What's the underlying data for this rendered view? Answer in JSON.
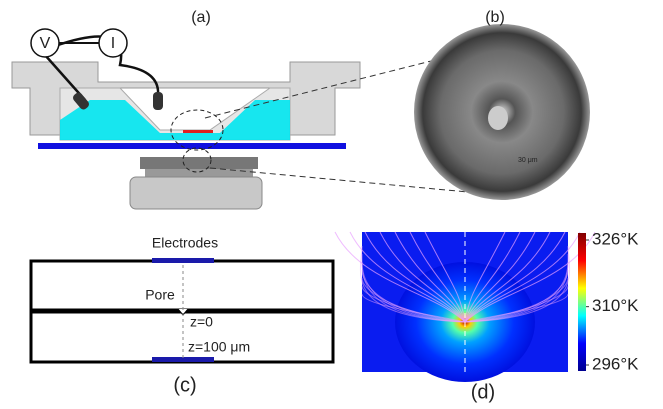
{
  "panels": {
    "a": {
      "label": "(a)",
      "meters": [
        "V",
        "I"
      ]
    },
    "b": {
      "label": "(b)",
      "scale_bar": "30 μm"
    },
    "c": {
      "label": "(c)",
      "electrodes": "Electrodes",
      "pore": "Pore",
      "z0": "z=0",
      "z100": "z=100 μm"
    },
    "d": {
      "label": "(d)"
    }
  },
  "colorbar": {
    "lim": [
      296,
      326
    ],
    "ticks": [
      {
        "value": 326,
        "label": "326°K"
      },
      {
        "value": 310,
        "label": "310°K"
      },
      {
        "value": 296,
        "label": "296°K"
      }
    ]
  }
}
